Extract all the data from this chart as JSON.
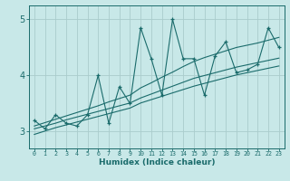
{
  "xlabel": "Humidex (Indice chaleur)",
  "x": [
    0,
    1,
    2,
    3,
    4,
    5,
    6,
    7,
    8,
    9,
    10,
    11,
    12,
    13,
    14,
    15,
    16,
    17,
    18,
    19,
    20,
    21,
    22,
    23
  ],
  "y_main": [
    3.2,
    3.05,
    3.3,
    3.15,
    3.1,
    3.3,
    4.0,
    3.15,
    3.8,
    3.5,
    4.85,
    4.3,
    3.65,
    5.0,
    4.3,
    4.3,
    3.65,
    4.35,
    4.6,
    4.05,
    4.1,
    4.2,
    4.85,
    4.5
  ],
  "y_upper": [
    3.1,
    3.16,
    3.22,
    3.28,
    3.34,
    3.4,
    3.46,
    3.53,
    3.59,
    3.65,
    3.78,
    3.87,
    3.97,
    4.06,
    4.16,
    4.25,
    4.32,
    4.38,
    4.44,
    4.5,
    4.54,
    4.58,
    4.63,
    4.68
  ],
  "y_mid": [
    3.05,
    3.1,
    3.15,
    3.21,
    3.26,
    3.31,
    3.36,
    3.41,
    3.46,
    3.51,
    3.6,
    3.67,
    3.74,
    3.81,
    3.88,
    3.95,
    4.0,
    4.05,
    4.1,
    4.15,
    4.19,
    4.23,
    4.27,
    4.31
  ],
  "y_lower": [
    2.95,
    3.01,
    3.07,
    3.12,
    3.17,
    3.22,
    3.27,
    3.32,
    3.37,
    3.42,
    3.51,
    3.57,
    3.63,
    3.69,
    3.75,
    3.81,
    3.86,
    3.91,
    3.96,
    4.01,
    4.05,
    4.09,
    4.13,
    4.17
  ],
  "bg_color": "#c8e8e8",
  "line_color": "#1a6b6b",
  "grid_color": "#aacccc",
  "ylim": [
    2.7,
    5.25
  ],
  "yticks": [
    3,
    4,
    5
  ],
  "xlim": [
    -0.5,
    23.5
  ]
}
